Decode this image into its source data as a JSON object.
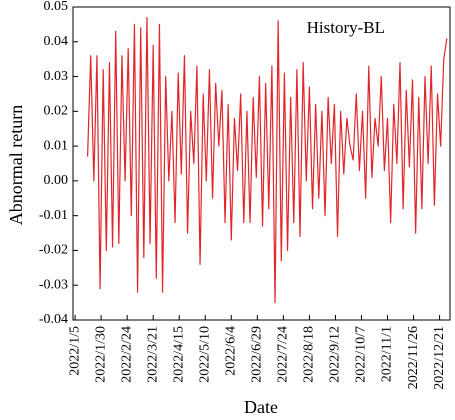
{
  "chart_data": {
    "type": "line",
    "x_label": "Date",
    "y_label": "Abnormal return",
    "x": [
      "2022/1/17",
      "2022/1/20",
      "2022/1/23",
      "2022/1/26",
      "2022/1/29",
      "2022/2/1",
      "2022/2/4",
      "2022/2/7",
      "2022/2/10",
      "2022/2/13",
      "2022/2/16",
      "2022/2/19",
      "2022/2/22",
      "2022/2/25",
      "2022/2/28",
      "2022/3/3",
      "2022/3/6",
      "2022/3/9",
      "2022/3/12",
      "2022/3/15",
      "2022/3/18",
      "2022/3/21",
      "2022/3/24",
      "2022/3/27",
      "2022/3/30",
      "2022/4/2",
      "2022/4/5",
      "2022/4/8",
      "2022/4/11",
      "2022/4/14",
      "2022/4/17",
      "2022/4/20",
      "2022/4/23",
      "2022/4/26",
      "2022/4/29",
      "2022/5/2",
      "2022/5/5",
      "2022/5/8",
      "2022/5/11",
      "2022/5/14",
      "2022/5/17",
      "2022/5/20",
      "2022/5/23",
      "2022/5/26",
      "2022/5/29",
      "2022/6/1",
      "2022/6/4",
      "2022/6/7",
      "2022/6/10",
      "2022/6/13",
      "2022/6/16",
      "2022/6/19",
      "2022/6/22",
      "2022/6/25",
      "2022/6/28",
      "2022/7/1",
      "2022/7/4",
      "2022/7/7",
      "2022/7/10",
      "2022/7/13",
      "2022/7/16",
      "2022/7/19",
      "2022/7/22",
      "2022/7/25",
      "2022/7/28",
      "2022/7/31",
      "2022/8/3",
      "2022/8/6",
      "2022/8/9",
      "2022/8/12",
      "2022/8/15",
      "2022/8/18",
      "2022/8/21",
      "2022/8/24",
      "2022/8/27",
      "2022/8/30",
      "2022/9/2",
      "2022/9/5",
      "2022/9/8",
      "2022/9/11",
      "2022/9/14",
      "2022/9/17",
      "2022/9/20",
      "2022/9/23",
      "2022/9/26",
      "2022/9/29",
      "2022/10/2",
      "2022/10/5",
      "2022/10/8",
      "2022/10/11",
      "2022/10/14",
      "2022/10/17",
      "2022/10/20",
      "2022/10/23",
      "2022/10/26",
      "2022/10/29",
      "2022/11/1",
      "2022/11/4",
      "2022/11/7",
      "2022/11/10",
      "2022/11/13",
      "2022/11/16",
      "2022/11/19",
      "2022/11/22",
      "2022/11/25",
      "2022/11/28",
      "2022/12/1",
      "2022/12/4",
      "2022/12/7",
      "2022/12/10",
      "2022/12/13",
      "2022/12/16",
      "2022/12/19",
      "2022/12/22",
      "2022/12/25",
      "2022/12/28"
    ],
    "series": [
      {
        "name": "History-BL",
        "color": "#e0262a",
        "values": [
          0.007,
          0.036,
          0.0,
          0.036,
          -0.031,
          0.032,
          -0.02,
          0.034,
          -0.019,
          0.043,
          -0.018,
          0.036,
          0.0,
          0.038,
          -0.01,
          0.045,
          -0.032,
          0.044,
          -0.022,
          0.047,
          -0.018,
          0.039,
          -0.028,
          0.045,
          -0.032,
          0.03,
          0.0,
          0.02,
          -0.012,
          0.031,
          0.002,
          0.036,
          -0.015,
          0.02,
          0.005,
          0.033,
          -0.024,
          0.025,
          0.0,
          0.032,
          -0.005,
          0.028,
          0.01,
          0.026,
          -0.012,
          0.022,
          -0.017,
          0.018,
          0.003,
          0.025,
          -0.012,
          0.02,
          -0.012,
          0.024,
          0.001,
          0.03,
          -0.013,
          0.028,
          -0.008,
          0.033,
          -0.035,
          0.046,
          -0.023,
          0.031,
          -0.02,
          0.024,
          -0.012,
          0.032,
          -0.016,
          0.034,
          0.0,
          0.027,
          -0.008,
          0.022,
          -0.005,
          0.02,
          -0.01,
          0.024,
          0.005,
          0.022,
          -0.016,
          0.02,
          0.002,
          0.018,
          0.01,
          0.006,
          0.025,
          0.003,
          0.02,
          -0.005,
          0.033,
          0.001,
          0.018,
          0.01,
          0.03,
          0.003,
          0.018,
          -0.012,
          0.022,
          0.005,
          0.034,
          -0.008,
          0.026,
          0.004,
          0.029,
          -0.015,
          0.024,
          -0.008,
          0.03,
          0.005,
          0.033,
          -0.007,
          0.025,
          0.01,
          0.035,
          0.041
        ]
      }
    ],
    "xlim": [
      "2022/1/3",
      "2022/12/31"
    ],
    "xticks": [
      "2022/1/5",
      "2022/1/30",
      "2022/2/24",
      "2022/3/21",
      "2022/4/15",
      "2022/5/10",
      "2022/6/4",
      "2022/6/29",
      "2022/7/24",
      "2022/8/18",
      "2022/9/12",
      "2022/10/7",
      "2022/11/1",
      "2022/11/26",
      "2022/12/21"
    ],
    "ylim": [
      -0.04,
      0.05
    ],
    "yticks": [
      -0.04,
      -0.03,
      -0.02,
      -0.01,
      {
        "value": 0,
        "label": "0.00"
      },
      0.01,
      0.02,
      0.03,
      0.04,
      0.05
    ],
    "legend": "top-right"
  }
}
